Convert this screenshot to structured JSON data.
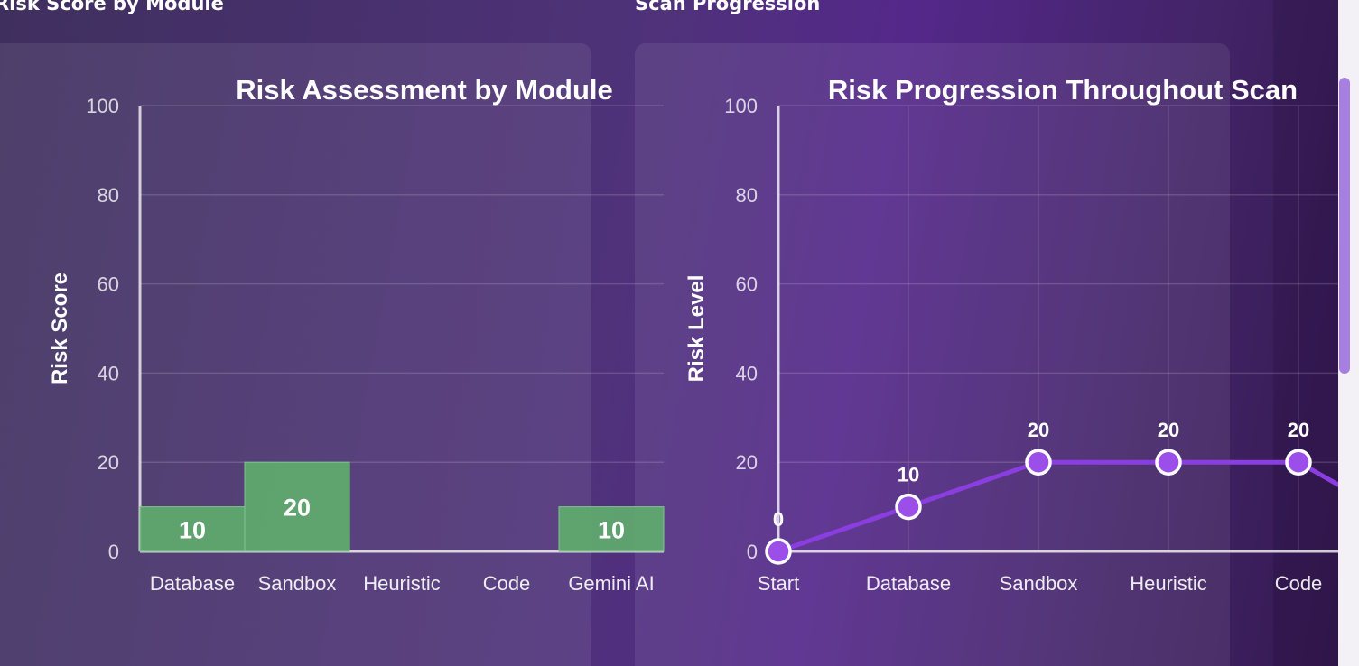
{
  "sections": {
    "module_title": "Risk Score by Module",
    "progression_title": "Scan Progression"
  },
  "colors": {
    "bar": "#5fab6e",
    "line": "#8a3ee0",
    "point_fill": "#9b4fe8",
    "point_stroke": "#ffffff"
  },
  "chart_data": [
    {
      "type": "bar",
      "title": "Risk Assessment by Module",
      "xlabel": "",
      "ylabel": "Risk Score",
      "ylim": [
        0,
        100
      ],
      "yticks": [
        0,
        20,
        40,
        60,
        80,
        100
      ],
      "grid": true,
      "categories": [
        "Database",
        "Sandbox",
        "Heuristic",
        "Code",
        "Gemini AI"
      ],
      "values": [
        10,
        20,
        0,
        0,
        10
      ],
      "data_labels": [
        "10",
        "20",
        "",
        "",
        "10"
      ]
    },
    {
      "type": "line",
      "title": "Risk Progression Throughout Scan",
      "xlabel": "",
      "ylabel": "Risk Level",
      "ylim": [
        0,
        100
      ],
      "yticks": [
        0,
        20,
        40,
        60,
        80,
        100
      ],
      "grid": true,
      "categories": [
        "Start",
        "Database",
        "Sandbox",
        "Heuristic",
        "Code"
      ],
      "values": [
        0,
        10,
        20,
        20,
        20
      ],
      "data_labels": [
        "0",
        "10",
        "20",
        "20",
        "20"
      ]
    }
  ]
}
